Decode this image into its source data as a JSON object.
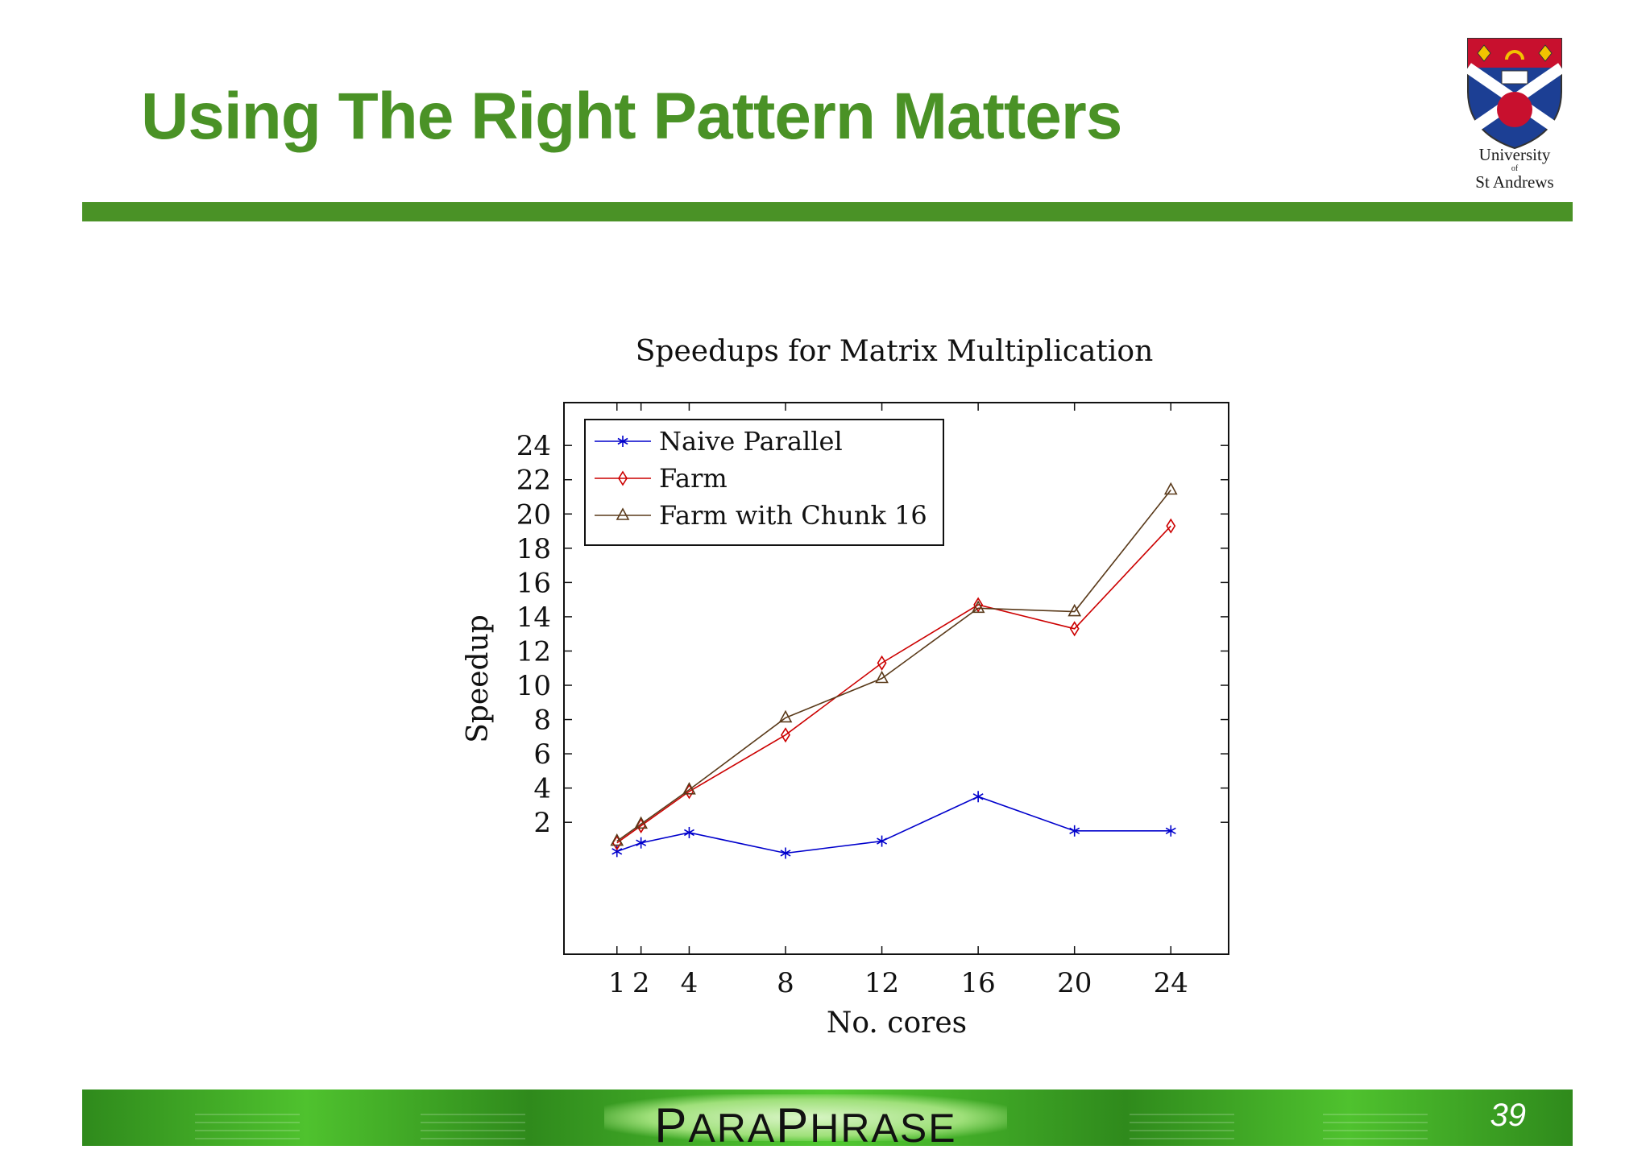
{
  "slide": {
    "title": "Using The Right Pattern Matters",
    "page_number": "39",
    "accent_color": "#4a9226"
  },
  "logo": {
    "line1": "University",
    "line2": "of",
    "line3": "St Andrews",
    "icon": "university-crest-icon"
  },
  "footer": {
    "brand_p1_big": "P",
    "brand_p1_rest": "ARA",
    "brand_p2_big": "P",
    "brand_p2_rest": "HRASE"
  },
  "chart_data": {
    "type": "line",
    "title": "Speedups for Matrix Multiplication",
    "xlabel": "No. cores",
    "ylabel": "Speedup",
    "x_ticks": [
      1,
      2,
      4,
      8,
      12,
      16,
      20,
      24
    ],
    "y_ticks": [
      2,
      4,
      6,
      8,
      10,
      12,
      14,
      16,
      18,
      20,
      22,
      24
    ],
    "xlim": [
      -1.2,
      26.4
    ],
    "ylim": [
      -5.7,
      26.5
    ],
    "legend_position": "top-left",
    "grid": false,
    "series": [
      {
        "name": "Naive Parallel",
        "color": "#0000cc",
        "marker": "star",
        "x": [
          1,
          2,
          4,
          8,
          12,
          16,
          20,
          24
        ],
        "y": [
          0.3,
          0.8,
          1.4,
          0.2,
          0.9,
          3.5,
          1.5,
          1.5
        ]
      },
      {
        "name": "Farm",
        "color": "#cc0000",
        "marker": "diamond",
        "x": [
          1,
          2,
          4,
          8,
          12,
          16,
          20,
          24
        ],
        "y": [
          0.8,
          1.8,
          3.8,
          7.1,
          11.3,
          14.7,
          13.3,
          19.3
        ]
      },
      {
        "name": "Farm with Chunk 16",
        "color": "#5a3a1a",
        "marker": "triangle",
        "x": [
          1,
          2,
          4,
          8,
          12,
          16,
          20,
          24
        ],
        "y": [
          0.9,
          1.9,
          3.9,
          8.1,
          10.4,
          14.5,
          14.3,
          21.4
        ]
      }
    ]
  }
}
